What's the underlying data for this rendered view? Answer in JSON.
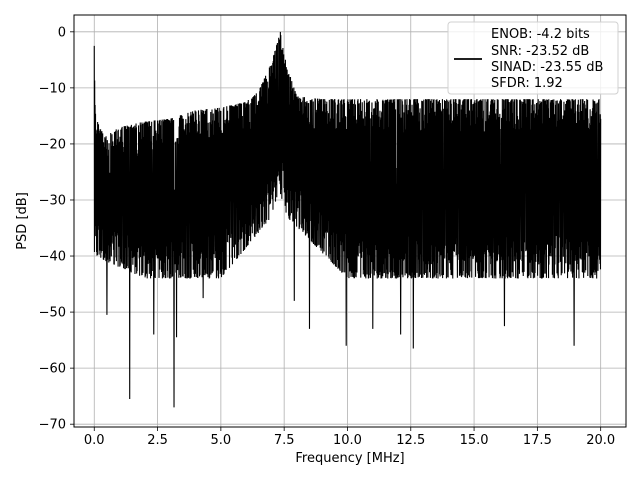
{
  "chart_data": {
    "type": "line",
    "title": "",
    "xlabel": "Frequency [MHz]",
    "ylabel": "PSD [dB]",
    "xlim": [
      -0.8,
      21.0
    ],
    "ylim": [
      -70.5,
      3.0
    ],
    "xticks": [
      0.0,
      2.5,
      5.0,
      7.5,
      10.0,
      12.5,
      15.0,
      17.5,
      20.0
    ],
    "xtick_labels": [
      "0.0",
      "2.5",
      "5.0",
      "7.5",
      "10.0",
      "12.5",
      "15.0",
      "17.5",
      "20.0"
    ],
    "yticks": [
      0,
      -10,
      -20,
      -30,
      -40,
      -50,
      -60,
      -70
    ],
    "ytick_labels": [
      "0",
      "−10",
      "−20",
      "−30",
      "−40",
      "−50",
      "−60",
      "−70"
    ],
    "grid": true,
    "legend_position": "top-right",
    "legend_entries": [
      "ENOB: -4.2 bits",
      "SNR: -23.52 dB",
      "SINAD: -23.55 dB",
      "SFDR: 1.92"
    ],
    "series": [
      {
        "color": "#000000",
        "x_range": [
          0.0,
          20.0
        ],
        "envelope_upper": [
          [
            0.0,
            -2.5
          ],
          [
            0.05,
            -14.5
          ],
          [
            0.2,
            -17.0
          ],
          [
            0.5,
            -18.5
          ],
          [
            1.0,
            -17.0
          ],
          [
            2.0,
            -16.0
          ],
          [
            3.0,
            -15.5
          ],
          [
            4.0,
            -14.0
          ],
          [
            5.0,
            -13.5
          ],
          [
            6.0,
            -12.5
          ],
          [
            6.5,
            -10.5
          ],
          [
            7.0,
            -5.5
          ],
          [
            7.35,
            0.0
          ],
          [
            7.6,
            -6.0
          ],
          [
            8.0,
            -11.5
          ],
          [
            9.0,
            -12.0
          ],
          [
            10.0,
            -12.0
          ],
          [
            12.0,
            -12.0
          ],
          [
            15.0,
            -12.0
          ],
          [
            18.0,
            -12.0
          ],
          [
            20.0,
            -12.0
          ]
        ],
        "envelope_lower_typical": [
          [
            0.0,
            -40.0
          ],
          [
            2.0,
            -44.0
          ],
          [
            5.0,
            -44.0
          ],
          [
            7.0,
            -33.0
          ],
          [
            7.3,
            -28.0
          ],
          [
            7.6,
            -33.0
          ],
          [
            10.0,
            -44.0
          ],
          [
            15.0,
            -44.0
          ],
          [
            20.0,
            -44.0
          ]
        ],
        "notable_minima": [
          [
            1.4,
            -65.5
          ],
          [
            3.15,
            -67.0
          ],
          [
            3.25,
            -54.5
          ],
          [
            2.35,
            -54.0
          ],
          [
            0.5,
            -50.5
          ],
          [
            9.95,
            -56.0
          ],
          [
            12.6,
            -56.5
          ],
          [
            12.1,
            -54.0
          ],
          [
            11.0,
            -53.0
          ],
          [
            8.5,
            -53.0
          ],
          [
            16.2,
            -52.5
          ],
          [
            18.95,
            -56.0
          ],
          [
            4.3,
            -47.5
          ],
          [
            7.9,
            -48.0
          ]
        ],
        "noise_center_db": -27.0
      }
    ]
  }
}
